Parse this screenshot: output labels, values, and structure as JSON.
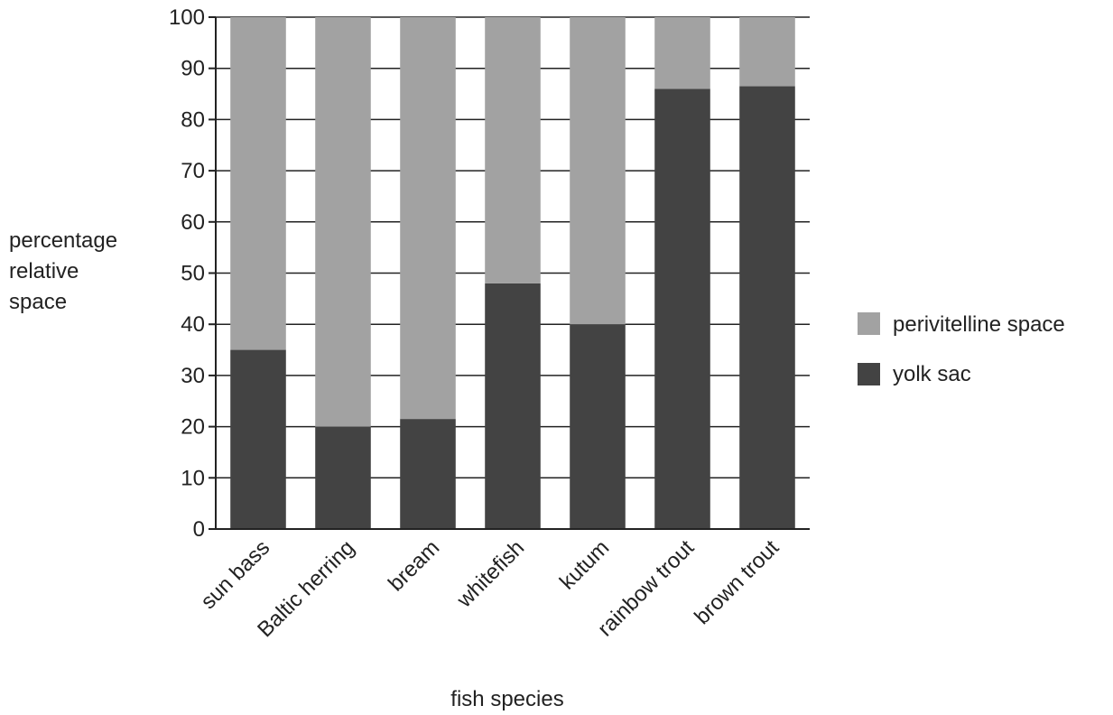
{
  "chart_data": {
    "type": "bar",
    "stacked": true,
    "categories": [
      "sun bass",
      "Baltic herring",
      "bream",
      "whitefish",
      "kutum",
      "rainbow trout",
      "brown trout"
    ],
    "series": [
      {
        "name": "yolk sac",
        "values": [
          35,
          20,
          21.5,
          48,
          40,
          86,
          86.5
        ],
        "color": "#434343"
      },
      {
        "name": "perivitelline space",
        "values": [
          65,
          80,
          78.5,
          52,
          60,
          14,
          13.5
        ],
        "color": "#a2a2a2"
      }
    ],
    "title": "",
    "xlabel": "fish species",
    "ylabel": [
      "percentage",
      "relative",
      "space"
    ],
    "ylim": [
      0,
      100
    ],
    "yticks": [
      "0",
      "10",
      "20",
      "30",
      "40",
      "50",
      "60",
      "70",
      "80",
      "90",
      "100"
    ],
    "grid": "horizontal lines at each tick",
    "legend": {
      "placement": "right",
      "entries": [
        "perivitelline space",
        "yolk sac"
      ]
    }
  }
}
